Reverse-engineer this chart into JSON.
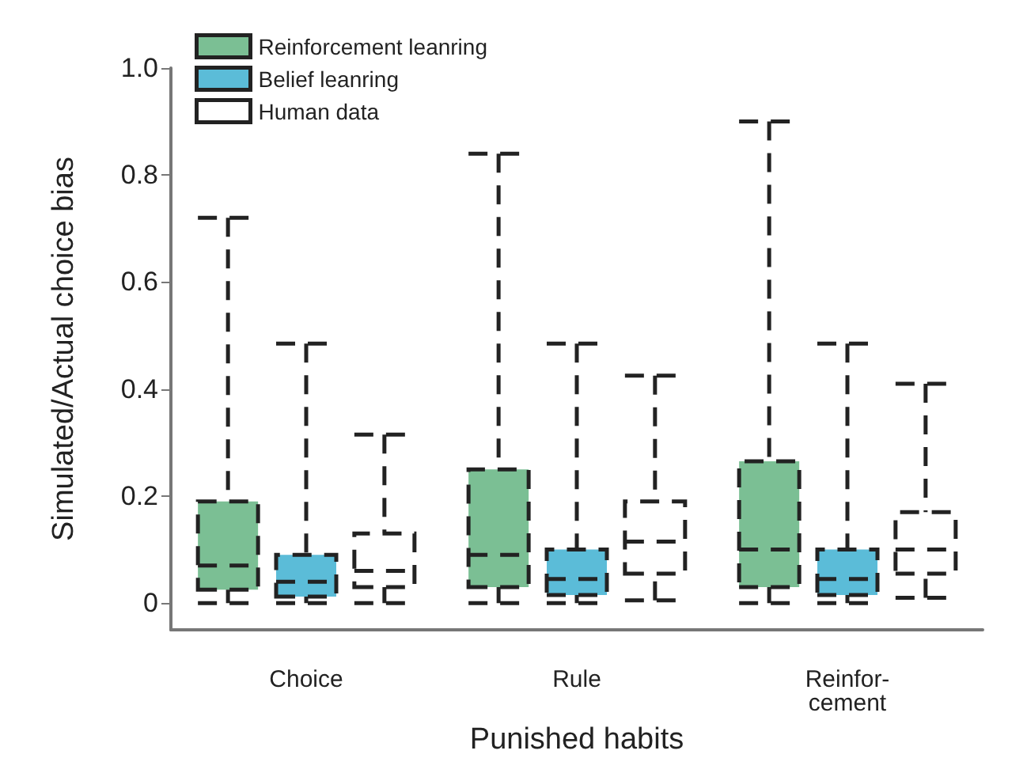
{
  "chart_data": {
    "type": "box",
    "xlabel": "Punished habits",
    "ylabel": "Simulated/Actual choice bias",
    "categories": [
      "Choice",
      "Rule",
      "Reinfor-\ncement"
    ],
    "ylim": [
      -0.05,
      1.0
    ],
    "yticks": [
      0,
      0.2,
      0.4,
      0.6,
      0.8,
      {
        "value": 1.0,
        "label": "1.0"
      }
    ],
    "grid": false,
    "legend": "top left",
    "line_style": "dashed",
    "series": [
      {
        "name": "Reinforcement leanring",
        "color": "#7bbf94",
        "boxes": [
          {
            "low": 0,
            "q1": 0.025,
            "median": 0.07,
            "q3": 0.19,
            "high": 0.72
          },
          {
            "low": 0,
            "q1": 0.03,
            "median": 0.09,
            "q3": 0.25,
            "high": 0.84
          },
          {
            "low": 0,
            "q1": 0.03,
            "median": 0.1,
            "q3": 0.265,
            "high": 0.9
          }
        ]
      },
      {
        "name": "Belief leanring",
        "color": "#5bbcd8",
        "boxes": [
          {
            "low": 0,
            "q1": 0.012,
            "median": 0.04,
            "q3": 0.09,
            "high": 0.485
          },
          {
            "low": 0,
            "q1": 0.015,
            "median": 0.045,
            "q3": 0.1,
            "high": 0.485
          },
          {
            "low": 0,
            "q1": 0.015,
            "median": 0.045,
            "q3": 0.1,
            "high": 0.485
          }
        ]
      },
      {
        "name": "Human data",
        "color": "#ffffff",
        "boxes": [
          {
            "low": 0,
            "q1": 0.03,
            "median": 0.06,
            "q3": 0.13,
            "high": 0.315
          },
          {
            "low": 0.005,
            "q1": 0.055,
            "median": 0.115,
            "q3": 0.19,
            "high": 0.425
          },
          {
            "low": 0.01,
            "q1": 0.055,
            "median": 0.1,
            "q3": 0.17,
            "high": 0.41
          }
        ]
      }
    ]
  }
}
